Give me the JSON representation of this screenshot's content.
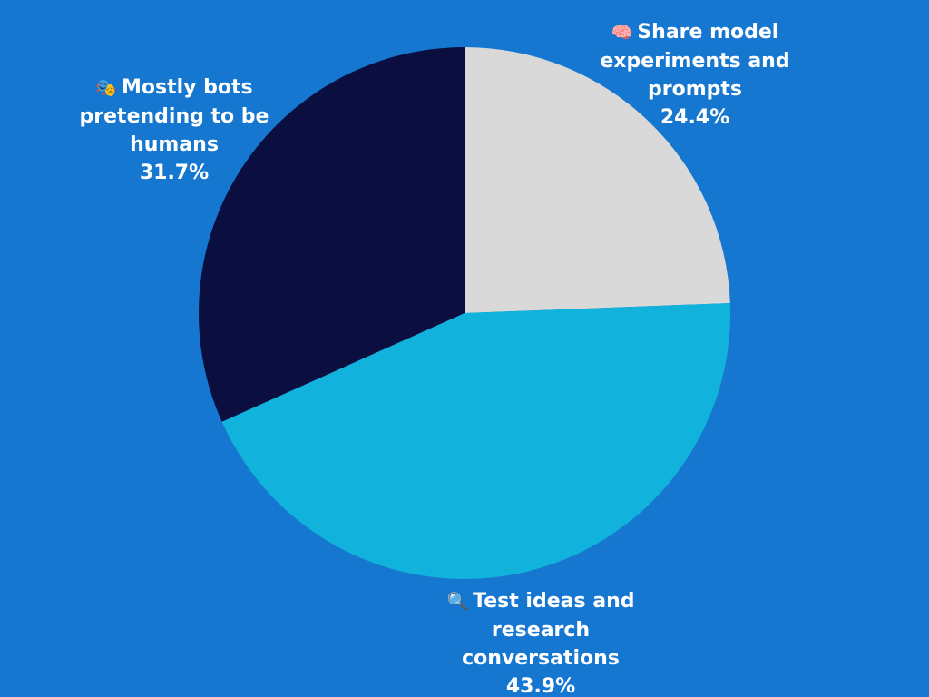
{
  "theme": {
    "background": "#1677d1",
    "label_color": "#ffffff"
  },
  "chart_data": {
    "type": "pie",
    "title": "",
    "start_angle_deg": 0,
    "direction": "clockwise",
    "slices": [
      {
        "label": "Share model experiments and prompts",
        "icon": "brain-icon",
        "icon_glyph": "🧠",
        "value": 24.4,
        "value_label": "24.4%",
        "color": "#d9d9d9"
      },
      {
        "label": "Test ideas and research conversations",
        "icon": "magnifying-glass-icon",
        "icon_glyph": "🔍",
        "value": 43.9,
        "value_label": "43.9%",
        "color": "#11b2dc"
      },
      {
        "label": "Mostly bots pretending to be humans",
        "icon": "theater-masks-icon",
        "icon_glyph": "🎭",
        "value": 31.7,
        "value_label": "31.7%",
        "color": "#0a0f3f"
      }
    ]
  }
}
